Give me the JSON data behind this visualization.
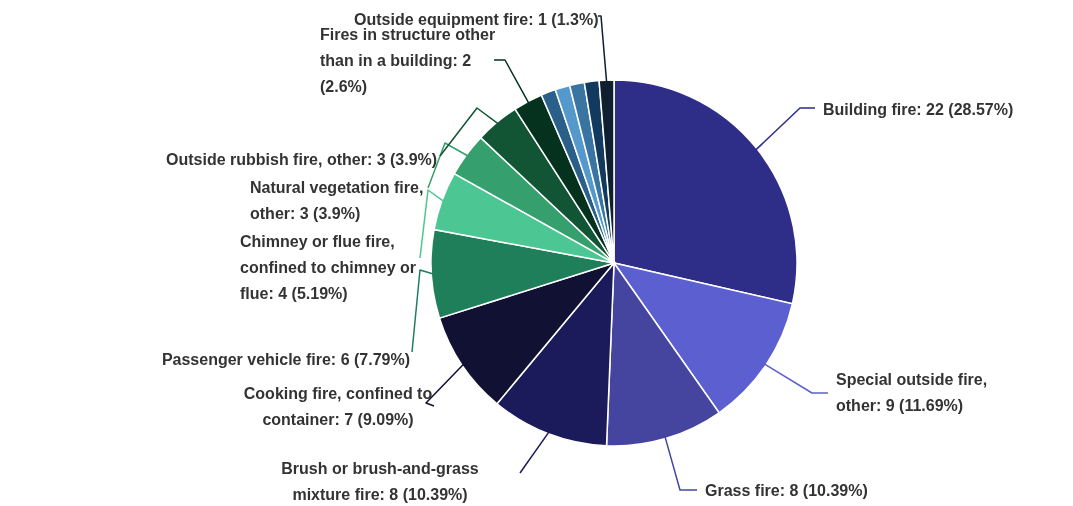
{
  "chart_data": {
    "type": "pie",
    "categories": [
      "Building fire",
      "Special outside fire, other",
      "Grass fire",
      "Brush or brush-and-grass mixture fire",
      "Cooking fire, confined to container",
      "Passenger vehicle fire",
      "Chimney or flue fire, confined to chimney or flue",
      "Natural vegetation fire, other",
      "Outside rubbish fire, other",
      "Fires in structure other than in a building",
      null,
      null,
      null,
      null,
      "Outside equipment fire"
    ],
    "values": [
      22,
      9,
      8,
      8,
      7,
      6,
      4,
      3,
      3,
      2,
      1,
      1,
      1,
      1,
      1
    ],
    "colors": [
      "#2e2d88",
      "#5b5fcf",
      "#4545a0",
      "#1b1a5a",
      "#111134",
      "#1f7f5a",
      "#4cc794",
      "#35a06e",
      "#115535",
      "#05321f",
      "#2a5f8a",
      "#5599cc",
      "#3a74a0",
      "#123a5e",
      "#0e1f30"
    ],
    "value_labels": [
      "22 (28.57%)",
      "9 (11.69%)",
      "8 (10.39%)",
      "8 (10.39%)",
      "7 (9.09%)",
      "6 (7.79%)",
      "4 (5.19%)",
      "3 (3.9%)",
      "3 (3.9%)",
      "2 (2.6%)",
      null,
      null,
      null,
      null,
      "1 (1.3%)"
    ],
    "legend": false
  }
}
